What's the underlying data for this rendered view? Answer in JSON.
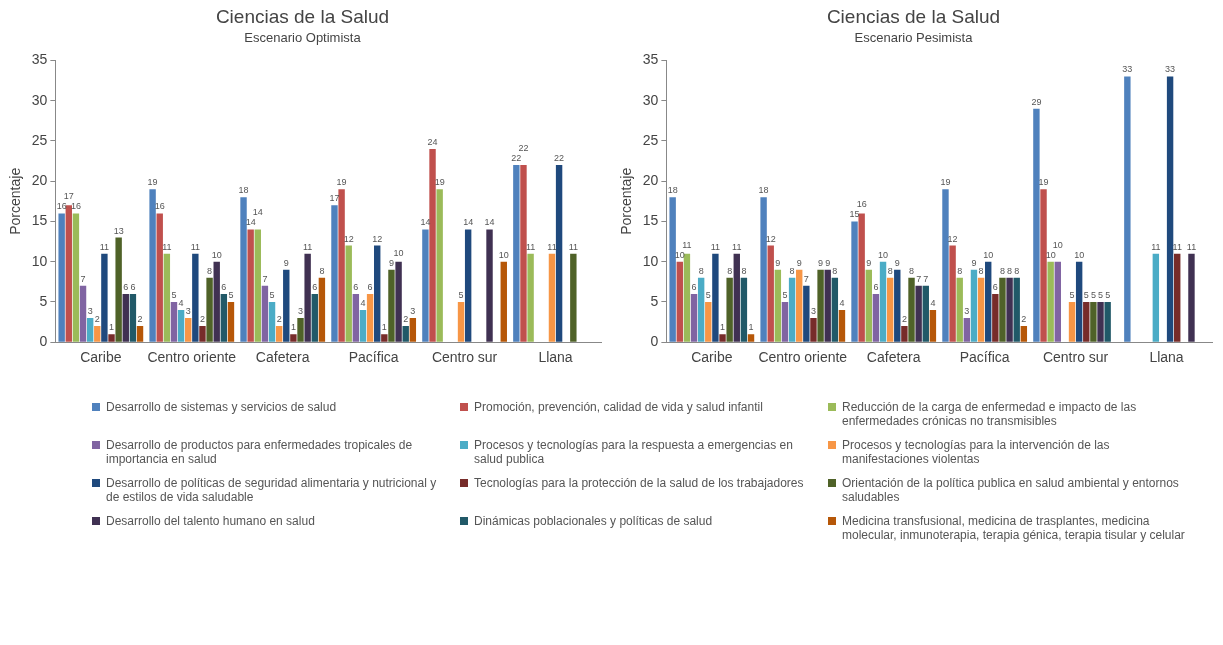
{
  "chart_data": [
    {
      "type": "bar",
      "title": "Ciencias de la Salud",
      "subtitle": "Escenario Optimista",
      "ylabel": "Porcentaje",
      "categories": [
        "Caribe",
        "Centro oriente",
        "Cafetera",
        "Pacífica",
        "Centro sur",
        "Llana"
      ],
      "ylim": [
        0,
        35
      ],
      "yticks": [
        0,
        5,
        10,
        15,
        20,
        25,
        30,
        35
      ],
      "grid": false,
      "data_labels": true,
      "legend": "bottom",
      "series": [
        {
          "name": "Desarrollo de sistemas y servicios de salud",
          "color": "#4f81bd",
          "values": [
            16,
            19,
            18,
            17,
            14,
            22
          ]
        },
        {
          "name": "Promoción, prevención, calidad de vida y salud infantil",
          "color": "#c0504d",
          "values": [
            17,
            16,
            14,
            19,
            24,
            22
          ]
        },
        {
          "name": "Reducción de la carga de enfermedad e impacto de las enfermedades crónicas no transmisibles",
          "color": "#9bbb59",
          "values": [
            16,
            11,
            14,
            12,
            19,
            11
          ]
        },
        {
          "name": "Desarrollo de productos para enfermedades tropicales de importancia en salud",
          "color": "#8064a2",
          "values": [
            7,
            5,
            7,
            6,
            null,
            null
          ]
        },
        {
          "name": "Procesos y tecnologías para la respuesta a emergencias en salud publica",
          "color": "#4bacc6",
          "values": [
            3,
            4,
            5,
            4,
            null,
            null
          ]
        },
        {
          "name": "Procesos y tecnologías para la intervención de las manifestaciones violentas",
          "color": "#f79646",
          "values": [
            2,
            3,
            2,
            6,
            5,
            11
          ]
        },
        {
          "name": "Desarrollo de políticas de seguridad alimentaria y nutricional y de estilos de vida saludable",
          "color": "#1f497d",
          "values": [
            11,
            11,
            9,
            12,
            14,
            22
          ]
        },
        {
          "name": "Tecnologías para la protección de la salud de los trabajadores",
          "color": "#772c2a",
          "values": [
            1,
            2,
            1,
            1,
            null,
            null
          ]
        },
        {
          "name": "Orientación de la política publica en salud ambiental y entornos saludables",
          "color": "#4f6228",
          "values": [
            13,
            8,
            3,
            9,
            null,
            11
          ]
        },
        {
          "name": "Desarrollo del talento humano en salud",
          "color": "#403152",
          "values": [
            6,
            10,
            11,
            10,
            14,
            null
          ]
        },
        {
          "name": "Dinámicas poblacionales y políticas de salud",
          "color": "#215968",
          "values": [
            6,
            6,
            6,
            2,
            null,
            null
          ]
        },
        {
          "name": "Medicina transfusional, medicina de trasplantes, medicina molecular, inmunoterapia, terapia génica, terapia tisular y celular",
          "color": "#b65708",
          "values": [
            2,
            5,
            8,
            3,
            10,
            null
          ]
        }
      ]
    },
    {
      "type": "bar",
      "title": "Ciencias de la Salud",
      "subtitle": "Escenario Pesimista",
      "ylabel": "Porcentaje",
      "categories": [
        "Caribe",
        "Centro oriente",
        "Cafetera",
        "Pacífica",
        "Centro sur",
        "Llana"
      ],
      "ylim": [
        0,
        35
      ],
      "yticks": [
        0,
        5,
        10,
        15,
        20,
        25,
        30,
        35
      ],
      "grid": false,
      "data_labels": true,
      "series": [
        {
          "color": "#4f81bd",
          "values": [
            18,
            18,
            15,
            19,
            29,
            33
          ]
        },
        {
          "color": "#c0504d",
          "values": [
            10,
            12,
            16,
            12,
            19,
            null
          ]
        },
        {
          "color": "#9bbb59",
          "values": [
            11,
            9,
            9,
            8,
            10,
            null
          ]
        },
        {
          "color": "#8064a2",
          "values": [
            6,
            5,
            6,
            3,
            10,
            null
          ]
        },
        {
          "color": "#4bacc6",
          "values": [
            8,
            8,
            10,
            9,
            null,
            11
          ]
        },
        {
          "color": "#f79646",
          "values": [
            5,
            9,
            8,
            8,
            5,
            null
          ]
        },
        {
          "color": "#1f497d",
          "values": [
            11,
            7,
            9,
            10,
            10,
            33
          ]
        },
        {
          "color": "#772c2a",
          "values": [
            1,
            3,
            2,
            6,
            5,
            11
          ]
        },
        {
          "color": "#4f6228",
          "values": [
            8,
            9,
            8,
            8,
            5,
            null
          ]
        },
        {
          "color": "#403152",
          "values": [
            11,
            9,
            7,
            8,
            5,
            11
          ]
        },
        {
          "color": "#215968",
          "values": [
            8,
            8,
            7,
            8,
            5,
            null
          ]
        },
        {
          "color": "#b65708",
          "values": [
            1,
            4,
            4,
            2,
            null,
            null
          ]
        }
      ]
    }
  ]
}
